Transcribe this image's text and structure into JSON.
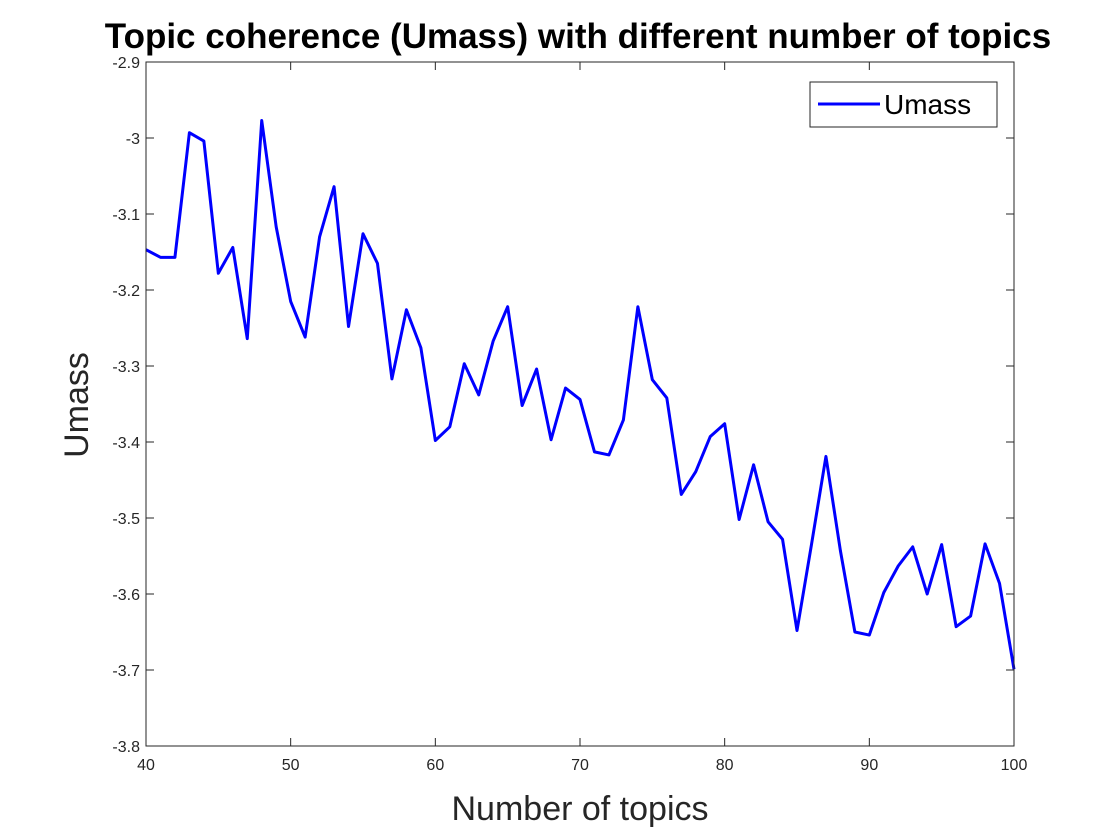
{
  "chart_data": {
    "type": "line",
    "title": "Topic coherence (Umass) with different number of topics",
    "xlabel": "Number of topics",
    "ylabel": "Umass",
    "xlim": [
      40,
      100
    ],
    "ylim": [
      -3.8,
      -2.9
    ],
    "xticks": [
      40,
      50,
      60,
      70,
      80,
      90,
      100
    ],
    "yticks": [
      -2.9,
      -3,
      -3.1,
      -3.2,
      -3.3,
      -3.4,
      -3.5,
      -3.6,
      -3.7,
      -3.8
    ],
    "xtick_labels": [
      "40",
      "50",
      "60",
      "70",
      "80",
      "90",
      "100"
    ],
    "ytick_labels": [
      "-2.9",
      "-3",
      "-3.1",
      "-3.2",
      "-3.3",
      "-3.4",
      "-3.5",
      "-3.6",
      "-3.7",
      "-3.8"
    ],
    "grid": false,
    "legend_position": "top-right",
    "series_color": "#0000ff",
    "series": [
      {
        "name": "Umass",
        "x": [
          40,
          41,
          42,
          43,
          44,
          45,
          46,
          47,
          48,
          49,
          50,
          51,
          52,
          53,
          54,
          55,
          56,
          57,
          58,
          59,
          60,
          61,
          62,
          63,
          64,
          65,
          66,
          67,
          68,
          69,
          70,
          71,
          72,
          73,
          74,
          75,
          76,
          77,
          78,
          79,
          80,
          81,
          82,
          83,
          84,
          85,
          86,
          87,
          88,
          89,
          90,
          91,
          92,
          93,
          94,
          95,
          96,
          97,
          98,
          99,
          100
        ],
        "values": [
          -3.147,
          -3.157,
          -3.157,
          -2.993,
          -3.004,
          -3.178,
          -3.144,
          -3.264,
          -2.977,
          -3.117,
          -3.215,
          -3.262,
          -3.13,
          -3.064,
          -3.248,
          -3.126,
          -3.165,
          -3.317,
          -3.226,
          -3.276,
          -3.398,
          -3.38,
          -3.297,
          -3.338,
          -3.267,
          -3.222,
          -3.352,
          -3.304,
          -3.397,
          -3.329,
          -3.344,
          -3.413,
          -3.417,
          -3.371,
          -3.222,
          -3.318,
          -3.342,
          -3.469,
          -3.439,
          -3.393,
          -3.376,
          -3.502,
          -3.43,
          -3.505,
          -3.528,
          -3.648,
          -3.535,
          -3.419,
          -3.543,
          -3.65,
          -3.654,
          -3.598,
          -3.563,
          -3.538,
          -3.6,
          -3.535,
          -3.643,
          -3.629,
          -3.534,
          -3.586,
          -3.699
        ]
      }
    ]
  }
}
